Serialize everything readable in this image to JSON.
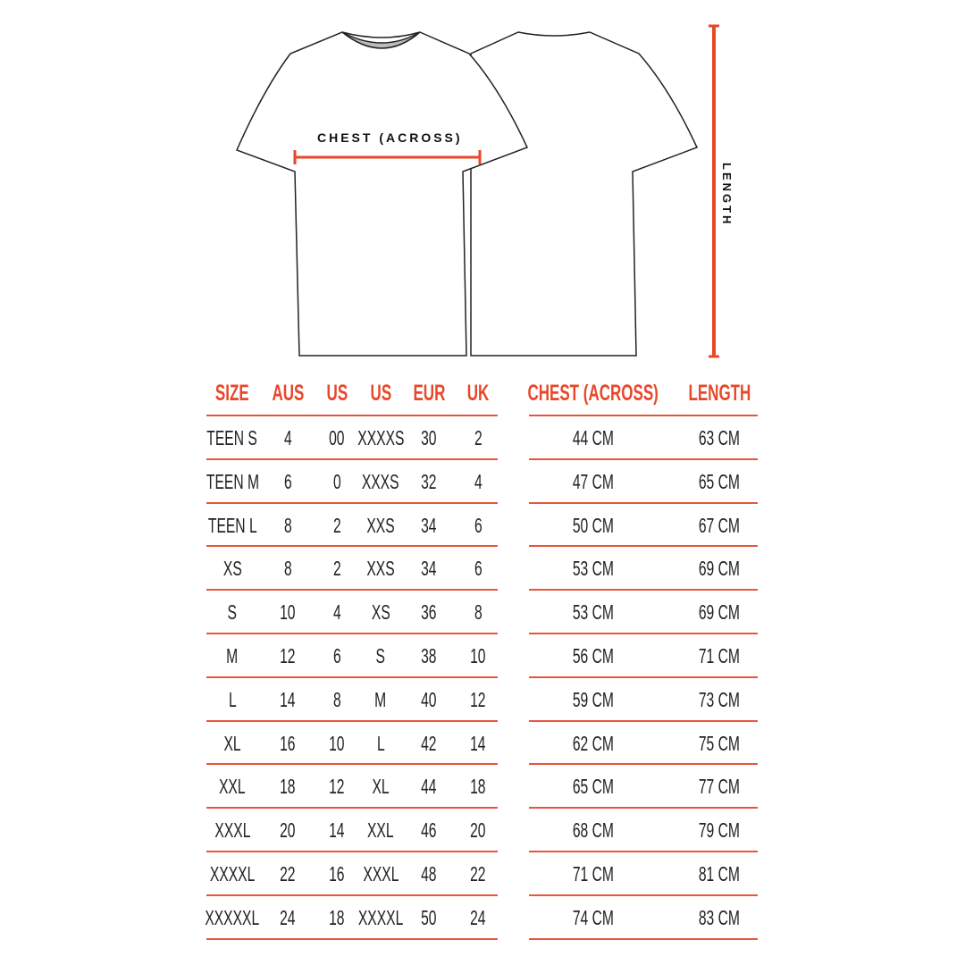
{
  "diagram": {
    "chest_label": "CHEST (ACROSS)",
    "length_label": "LENGTH",
    "accent_color": "#e8472a"
  },
  "size_table": {
    "headers": [
      "SIZE",
      "AUS",
      "US",
      "US",
      "EUR",
      "UK"
    ],
    "rows": [
      [
        "TEEN S",
        "4",
        "00",
        "XXXXS",
        "30",
        "2"
      ],
      [
        "TEEN M",
        "6",
        "0",
        "XXXS",
        "32",
        "4"
      ],
      [
        "TEEN L",
        "8",
        "2",
        "XXS",
        "34",
        "6"
      ],
      [
        "XS",
        "8",
        "2",
        "XXS",
        "34",
        "6"
      ],
      [
        "S",
        "10",
        "4",
        "XS",
        "36",
        "8"
      ],
      [
        "M",
        "12",
        "6",
        "S",
        "38",
        "10"
      ],
      [
        "L",
        "14",
        "8",
        "M",
        "40",
        "12"
      ],
      [
        "XL",
        "16",
        "10",
        "L",
        "42",
        "14"
      ],
      [
        "XXL",
        "18",
        "12",
        "XL",
        "44",
        "18"
      ],
      [
        "XXXL",
        "20",
        "14",
        "XXL",
        "46",
        "20"
      ],
      [
        "XXXXL",
        "22",
        "16",
        "XXXL",
        "48",
        "22"
      ],
      [
        "XXXXXL",
        "24",
        "18",
        "XXXXL",
        "50",
        "24"
      ]
    ]
  },
  "measure_table": {
    "headers": [
      "CHEST (ACROSS)",
      "LENGTH"
    ],
    "rows": [
      [
        "44 CM",
        "63 CM"
      ],
      [
        "47 CM",
        "65 CM"
      ],
      [
        "50 CM",
        "67 CM"
      ],
      [
        "53 CM",
        "69 CM"
      ],
      [
        "53 CM",
        "69 CM"
      ],
      [
        "56 CM",
        "71 CM"
      ],
      [
        "59 CM",
        "73 CM"
      ],
      [
        "62 CM",
        "75 CM"
      ],
      [
        "65 CM",
        "77 CM"
      ],
      [
        "68 CM",
        "79 CM"
      ],
      [
        "71 CM",
        "81 CM"
      ],
      [
        "74 CM",
        "83 CM"
      ]
    ]
  }
}
